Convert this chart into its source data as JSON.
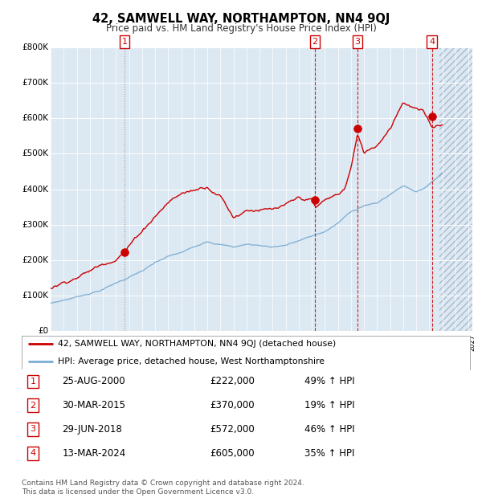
{
  "title": "42, SAMWELL WAY, NORTHAMPTON, NN4 9QJ",
  "subtitle": "Price paid vs. HM Land Registry's House Price Index (HPI)",
  "ylim": [
    0,
    800000
  ],
  "yticks": [
    0,
    100000,
    200000,
    300000,
    400000,
    500000,
    600000,
    700000,
    800000
  ],
  "ytick_labels": [
    "£0",
    "£100K",
    "£200K",
    "£300K",
    "£400K",
    "£500K",
    "£600K",
    "£700K",
    "£800K"
  ],
  "xlim_start": 1995.0,
  "xlim_end": 2027.3,
  "sale_color": "#cc0000",
  "hpi_color": "#7aadd4",
  "sale_label": "42, SAMWELL WAY, NORTHAMPTON, NN4 9QJ (detached house)",
  "hpi_label": "HPI: Average price, detached house, West Northamptonshire",
  "sales": [
    {
      "num": 1,
      "date_year": 2000.65,
      "price": 222000,
      "pct": "49%",
      "date_str": "25-AUG-2000"
    },
    {
      "num": 2,
      "date_year": 2015.24,
      "price": 370000,
      "pct": "19%",
      "date_str": "30-MAR-2015"
    },
    {
      "num": 3,
      "date_year": 2018.49,
      "price": 572000,
      "pct": "46%",
      "date_str": "29-JUN-2018"
    },
    {
      "num": 4,
      "date_year": 2024.2,
      "price": 605000,
      "pct": "35%",
      "date_str": "13-MAR-2024"
    }
  ],
  "footer": "Contains HM Land Registry data © Crown copyright and database right 2024.\nThis data is licensed under the Open Government Licence v3.0.",
  "bg_color": "#dce8f2",
  "grid_color": "#ffffff",
  "future_start": 2024.75,
  "hpi_key_years": [
    1995,
    1996,
    1997,
    1998,
    1999,
    2000,
    2001,
    2002,
    2003,
    2004,
    2005,
    2006,
    2007,
    2008,
    2009,
    2010,
    2011,
    2012,
    2013,
    2014,
    2015,
    2016,
    2017,
    2018,
    2019,
    2020,
    2021,
    2022,
    2023,
    2024,
    2025
  ],
  "hpi_key_vals": [
    78000,
    87000,
    97000,
    108000,
    120000,
    138000,
    155000,
    172000,
    193000,
    210000,
    220000,
    235000,
    255000,
    248000,
    240000,
    248000,
    245000,
    242000,
    248000,
    260000,
    272000,
    285000,
    308000,
    340000,
    360000,
    365000,
    390000,
    415000,
    400000,
    420000,
    455000
  ],
  "house_key_years": [
    1995,
    1996,
    1997,
    1998,
    1999,
    2000,
    2001,
    2002,
    2003,
    2004,
    2005,
    2006,
    2007,
    2008,
    2009,
    2010,
    2011,
    2012,
    2013,
    2014,
    2015,
    2015.3,
    2016,
    2017,
    2017.5,
    2018,
    2018.5,
    2019,
    2020,
    2021,
    2022,
    2022.5,
    2023,
    2023.5,
    2024,
    2024.25,
    2025
  ],
  "house_key_vals": [
    120000,
    138000,
    158000,
    175000,
    195000,
    218000,
    255000,
    300000,
    345000,
    385000,
    410000,
    420000,
    435000,
    415000,
    355000,
    380000,
    385000,
    380000,
    385000,
    400000,
    395000,
    370000,
    390000,
    405000,
    420000,
    480000,
    572000,
    520000,
    545000,
    600000,
    680000,
    670000,
    660000,
    650000,
    620000,
    605000,
    620000
  ]
}
